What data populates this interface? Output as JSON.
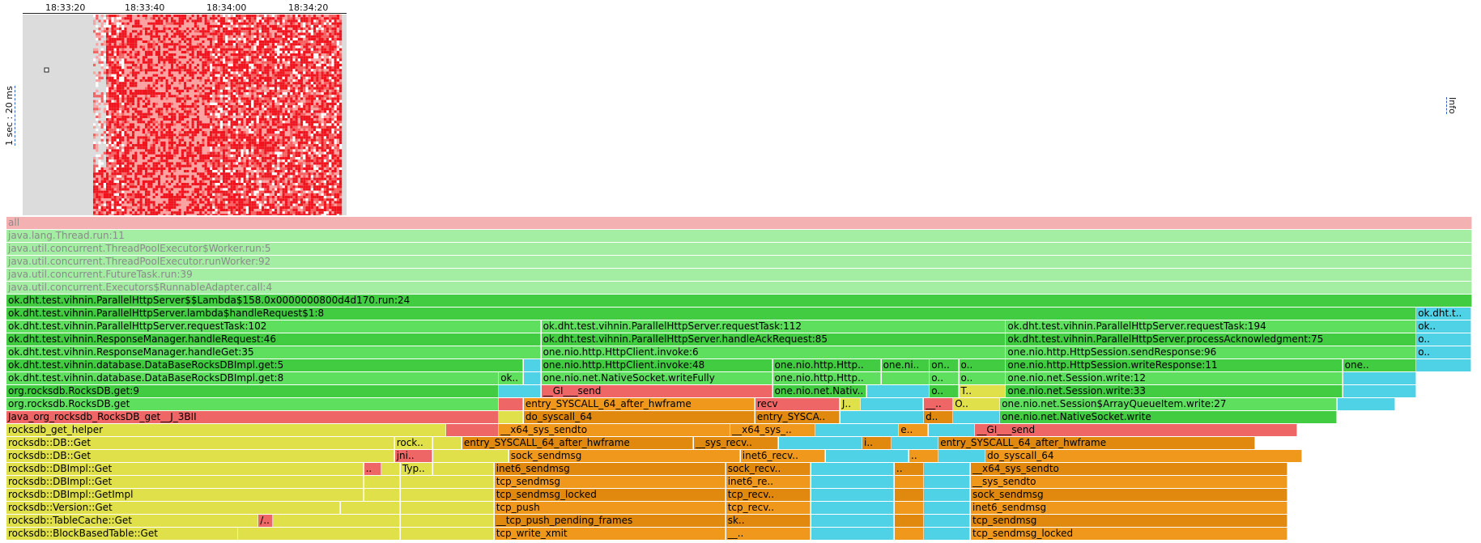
{
  "time_axis": {
    "ticks": [
      "18:33:20",
      "18:33:40",
      "18:34:00",
      "18:34:20"
    ]
  },
  "scale_label": "1 sec : 20 ms",
  "info_label": "Info",
  "colors": {
    "heatmap_empty": "#dcdcdc",
    "heatmap_hot": "#f0141e",
    "heatmap_mid": "#f76060",
    "heatmap_cool": "#fca0a0",
    "root": "#f4b1b1",
    "java_dim": "#a4eea4",
    "java": "#5ee05e",
    "java_dark": "#42cc42",
    "native": "#ee6666",
    "cpp": "#e0e04a",
    "kernel": "#f0981b",
    "kernel_dark": "#e0890e",
    "cyan": "#4fd2e6"
  },
  "flame": {
    "rows": [
      [
        {
          "label": "all",
          "w": 100,
          "c": "root",
          "dim": true
        }
      ],
      [
        {
          "label": "java.lang.Thread.run:11",
          "w": 100,
          "c": "java_dim",
          "dim": true
        }
      ],
      [
        {
          "label": "java.util.concurrent.ThreadPoolExecutor$Worker.run:5",
          "w": 100,
          "c": "java_dim",
          "dim": true
        }
      ],
      [
        {
          "label": "java.util.concurrent.ThreadPoolExecutor.runWorker:92",
          "w": 100,
          "c": "java_dim",
          "dim": true
        }
      ],
      [
        {
          "label": "java.util.concurrent.FutureTask.run:39",
          "w": 100,
          "c": "java_dim",
          "dim": true
        }
      ],
      [
        {
          "label": "java.util.concurrent.Executors$RunnableAdapter.call:4",
          "w": 100,
          "c": "java_dim",
          "dim": true
        }
      ],
      [
        {
          "label": "ok.dht.test.vihnin.ParallelHttpServer$$Lambda$158.0x0000000800d4d170.run:24",
          "w": 100,
          "c": "java_dark"
        }
      ],
      [
        {
          "label": "ok.dht.test.vihnin.ParallelHttpServer.lambda$handleRequest$1:8",
          "w": 96.2,
          "c": "java_dark"
        },
        {
          "label": "ok.dht.t..",
          "w": 3.8,
          "c": "cyan"
        }
      ],
      [
        {
          "label": "ok.dht.test.vihnin.ParallelHttpServer.requestTask:102",
          "w": 36.5,
          "c": "java"
        },
        {
          "label": "ok.dht.test.vihnin.ParallelHttpServer.requestTask:112",
          "w": 31.7,
          "c": "java"
        },
        {
          "label": "ok.dht.test.vihnin.ParallelHttpServer.requestTask:194",
          "w": 28,
          "c": "java"
        },
        {
          "label": "ok..",
          "w": 3.8,
          "c": "cyan"
        }
      ],
      [
        {
          "label": "ok.dht.test.vihnin.ResponseManager.handleRequest:46",
          "w": 36.5,
          "c": "java_dark"
        },
        {
          "label": "ok.dht.test.vihnin.ParallelHttpServer.handleAckRequest:85",
          "w": 31.7,
          "c": "java_dark"
        },
        {
          "label": "ok.dht.test.vihnin.ParallelHttpServer.processAcknowledgment:75",
          "w": 28,
          "c": "java_dark"
        },
        {
          "label": "o..",
          "w": 3.8,
          "c": "cyan"
        }
      ],
      [
        {
          "label": "ok.dht.test.vihnin.ResponseManager.handleGet:35",
          "w": 36.5,
          "c": "java"
        },
        {
          "label": "one.nio.http.HttpClient.invoke:6",
          "w": 31.7,
          "c": "java"
        },
        {
          "label": "one.nio.http.HttpSession.sendResponse:96",
          "w": 28,
          "c": "java"
        },
        {
          "label": "o..",
          "w": 3.8,
          "c": "cyan"
        }
      ],
      [
        {
          "label": "ok.dht.test.vihnin.database.DataBaseRocksDBImpl.get:5",
          "w": 35.3,
          "c": "java_dark"
        },
        {
          "label": "",
          "w": 1.2,
          "c": "cyan"
        },
        {
          "label": "one.nio.http.HttpClient.invoke:48",
          "w": 15.8,
          "c": "java_dark"
        },
        {
          "label": "one.nio.http.Http..",
          "w": 7.4,
          "c": "java_dark"
        },
        {
          "label": "one.ni..",
          "w": 3.3,
          "c": "java_dark"
        },
        {
          "label": "on..",
          "w": 2,
          "c": "java_dark"
        },
        {
          "label": "o..",
          "w": 3.2,
          "c": "java_dark"
        },
        {
          "label": "one.nio.http.HttpSession.writeResponse:11",
          "w": 23,
          "c": "java_dark"
        },
        {
          "label": "one..",
          "w": 5,
          "c": "java_dark"
        },
        {
          "label": "",
          "w": 3.8,
          "c": "cyan"
        }
      ],
      [
        {
          "label": "ok.dht.test.vihnin.database.DataBaseRocksDBImpl.get:8",
          "w": 33.6,
          "c": "java"
        },
        {
          "label": "ok..",
          "w": 1.7,
          "c": "java"
        },
        {
          "label": "",
          "w": 1.2,
          "c": "cyan"
        },
        {
          "label": "one.nio.net.NativeSocket.writeFully",
          "w": 15.8,
          "c": "java"
        },
        {
          "label": "one.nio.http.Http..",
          "w": 7.4,
          "c": "java"
        },
        {
          "label": "",
          "w": 3.3,
          "c": "java"
        },
        {
          "label": "o..",
          "w": 2,
          "c": "java"
        },
        {
          "label": "o..",
          "w": 3.2,
          "c": "java"
        },
        {
          "label": "one.nio.net.Session.write:12",
          "w": 23,
          "c": "java"
        },
        {
          "label": "",
          "w": 5,
          "c": "cyan"
        }
      ],
      [
        {
          "label": "org.rocksdb.RocksDB.get:9",
          "w": 33.6,
          "c": "java_dark"
        },
        {
          "label": "",
          "w": 2.9,
          "c": "cyan"
        },
        {
          "label": "__GI___send",
          "w": 15.8,
          "c": "native"
        },
        {
          "label": "one.nio.net.Nativ..",
          "w": 6.4,
          "c": "java_dark"
        },
        {
          "label": "",
          "w": 4.3,
          "c": "cyan"
        },
        {
          "label": "o..",
          "w": 2,
          "c": "java_dark"
        },
        {
          "label": "T..",
          "w": 3.2,
          "c": "cpp"
        },
        {
          "label": "one.nio.net.Session.write:33",
          "w": 23,
          "c": "java_dark"
        },
        {
          "label": "",
          "w": 5,
          "c": "cyan"
        }
      ],
      [
        {
          "label": "org.rocksdb.RocksDB.get",
          "w": 33.6,
          "c": "java"
        },
        {
          "label": "",
          "w": 1.7,
          "c": "native"
        },
        {
          "label": "entry_SYSCALL_64_after_hwframe",
          "w": 15.8,
          "c": "kernel"
        },
        {
          "label": "recv",
          "w": 5.8,
          "c": "native"
        },
        {
          "label": "J..",
          "w": 1.4,
          "c": "cpp"
        },
        {
          "label": "",
          "w": 4.3,
          "c": "cyan"
        },
        {
          "label": "__..",
          "w": 2,
          "c": "native"
        },
        {
          "label": "O..",
          "w": 3.2,
          "c": "cpp"
        },
        {
          "label": "one.nio.net.Session$ArrayQueueItem.write:27",
          "w": 23,
          "c": "java"
        },
        {
          "label": "",
          "w": 4,
          "c": "cyan"
        }
      ],
      [
        {
          "label": "Java_org_rocksdb_RocksDB_get__J_3BII",
          "w": 33.6,
          "c": "native"
        },
        {
          "label": "",
          "w": 1.7,
          "c": "cpp"
        },
        {
          "label": "do_syscall_64",
          "w": 15.8,
          "c": "kernel_dark"
        },
        {
          "label": "entry_SYSCA..",
          "w": 5.8,
          "c": "kernel_dark"
        },
        {
          "label": "",
          "w": 5.7,
          "c": "cyan"
        },
        {
          "label": "d..",
          "w": 2,
          "c": "kernel_dark"
        },
        {
          "label": "",
          "w": 3.2,
          "c": "cyan"
        },
        {
          "label": "one.nio.net.NativeSocket.write",
          "w": 23,
          "c": "java_dark"
        }
      ],
      [
        {
          "label": "rocksdb_get_helper",
          "w": 30,
          "c": "cpp"
        },
        {
          "label": "",
          "w": 3.6,
          "c": "native"
        },
        {
          "label": "__x64_sys_sendto",
          "w": 15.8,
          "c": "kernel"
        },
        {
          "label": "__x64_sys_..",
          "w": 5.8,
          "c": "kernel"
        },
        {
          "label": "",
          "w": 5.7,
          "c": "cyan"
        },
        {
          "label": "e..",
          "w": 2,
          "c": "kernel"
        },
        {
          "label": "",
          "w": 3.2,
          "c": "cyan"
        },
        {
          "label": "__GI___send",
          "w": 22,
          "c": "native"
        }
      ],
      [
        {
          "label": "rocksdb::DB::Get",
          "w": 26.5,
          "c": "cpp"
        },
        {
          "label": "rock..",
          "w": 2.6,
          "c": "cpp"
        },
        {
          "label": "",
          "w": 2,
          "c": "cpp"
        },
        {
          "label": "entry_SYSCALL_64_after_hwframe",
          "w": 15.8,
          "c": "kernel_dark"
        },
        {
          "label": "__sys_recv..",
          "w": 5.8,
          "c": "kernel_dark"
        },
        {
          "label": "",
          "w": 5.7,
          "c": "cyan"
        },
        {
          "label": "i..",
          "w": 2,
          "c": "kernel_dark"
        },
        {
          "label": "",
          "w": 3.2,
          "c": "cyan"
        },
        {
          "label": "entry_SYSCALL_64_after_hwframe",
          "w": 21.6,
          "c": "kernel_dark"
        }
      ],
      [
        {
          "label": "rocksdb::DB::Get",
          "w": 26.5,
          "c": "cpp"
        },
        {
          "label": "jni..",
          "w": 2.6,
          "c": "native"
        },
        {
          "label": "",
          "w": 5.2,
          "c": "cpp"
        },
        {
          "label": "sock_sendmsg",
          "w": 15.8,
          "c": "kernel"
        },
        {
          "label": "inet6_recv..",
          "w": 5.8,
          "c": "kernel"
        },
        {
          "label": "",
          "w": 5.7,
          "c": "cyan"
        },
        {
          "label": "..",
          "w": 2,
          "c": "kernel"
        },
        {
          "label": "",
          "w": 3.2,
          "c": "cyan"
        },
        {
          "label": "do_syscall_64",
          "w": 21.6,
          "c": "kernel"
        }
      ],
      [
        {
          "label": "rocksdb::DBImpl::Get",
          "w": 24.4,
          "c": "cpp"
        },
        {
          "label": "..",
          "w": 1.2,
          "c": "native"
        },
        {
          "label": "",
          "w": 1.3,
          "c": "cpp"
        },
        {
          "label": "Typ..",
          "w": 2.2,
          "c": "cpp"
        },
        {
          "label": "",
          "w": 4.2,
          "c": "cpp"
        },
        {
          "label": "inet6_sendmsg",
          "w": 15.8,
          "c": "kernel_dark"
        },
        {
          "label": "sock_recv..",
          "w": 5.8,
          "c": "kernel_dark"
        },
        {
          "label": "",
          "w": 5.7,
          "c": "cyan"
        },
        {
          "label": "..",
          "w": 2,
          "c": "kernel_dark"
        },
        {
          "label": "",
          "w": 3.2,
          "c": "cyan"
        },
        {
          "label": "__x64_sys_sendto",
          "w": 21.6,
          "c": "kernel_dark"
        }
      ],
      [
        {
          "label": "rocksdb::DBImpl::Get",
          "w": 24.4,
          "c": "cpp"
        },
        {
          "label": "",
          "w": 2.5,
          "c": "cpp"
        },
        {
          "label": "",
          "w": 6.4,
          "c": "cpp"
        },
        {
          "label": "tcp_sendmsg",
          "w": 15.8,
          "c": "kernel"
        },
        {
          "label": "inet6_re..",
          "w": 5.8,
          "c": "kernel"
        },
        {
          "label": "",
          "w": 5.7,
          "c": "cyan"
        },
        {
          "label": "",
          "w": 2,
          "c": "kernel"
        },
        {
          "label": "",
          "w": 3.2,
          "c": "cyan"
        },
        {
          "label": "__sys_sendto",
          "w": 21.6,
          "c": "kernel"
        }
      ],
      [
        {
          "label": "rocksdb::DBImpl::GetImpl",
          "w": 24.4,
          "c": "cpp"
        },
        {
          "label": "",
          "w": 2.5,
          "c": "cpp"
        },
        {
          "label": "",
          "w": 6.4,
          "c": "cpp"
        },
        {
          "label": "tcp_sendmsg_locked",
          "w": 15.8,
          "c": "kernel_dark"
        },
        {
          "label": "tcp_recv..",
          "w": 5.8,
          "c": "kernel_dark"
        },
        {
          "label": "",
          "w": 5.7,
          "c": "cyan"
        },
        {
          "label": "",
          "w": 2,
          "c": "kernel_dark"
        },
        {
          "label": "",
          "w": 3.2,
          "c": "cyan"
        },
        {
          "label": "sock_sendmsg",
          "w": 21.6,
          "c": "kernel_dark"
        }
      ],
      [
        {
          "label": "rocksdb::Version::Get",
          "w": 22.8,
          "c": "cpp"
        },
        {
          "label": "",
          "w": 4.1,
          "c": "cpp"
        },
        {
          "label": "",
          "w": 6.4,
          "c": "cpp"
        },
        {
          "label": "tcp_push",
          "w": 15.8,
          "c": "kernel"
        },
        {
          "label": "tcp_recv..",
          "w": 5.8,
          "c": "kernel"
        },
        {
          "label": "",
          "w": 5.7,
          "c": "cyan"
        },
        {
          "label": "",
          "w": 2,
          "c": "kernel"
        },
        {
          "label": "",
          "w": 3.2,
          "c": "cyan"
        },
        {
          "label": "inet6_sendmsg",
          "w": 21.6,
          "c": "kernel"
        }
      ],
      [
        {
          "label": "rocksdb::TableCache::Get",
          "w": 17.2,
          "c": "cpp"
        },
        {
          "label": "/..",
          "w": 1,
          "c": "native"
        },
        {
          "label": "",
          "w": 8.7,
          "c": "cpp"
        },
        {
          "label": "",
          "w": 6.4,
          "c": "cpp"
        },
        {
          "label": "__tcp_push_pending_frames",
          "w": 15.8,
          "c": "kernel_dark"
        },
        {
          "label": "sk..",
          "w": 5.8,
          "c": "kernel_dark"
        },
        {
          "label": "",
          "w": 5.7,
          "c": "cyan"
        },
        {
          "label": "",
          "w": 2,
          "c": "kernel_dark"
        },
        {
          "label": "",
          "w": 3.2,
          "c": "cyan"
        },
        {
          "label": "tcp_sendmsg",
          "w": 21.6,
          "c": "kernel_dark"
        }
      ],
      [
        {
          "label": "rocksdb::BlockBasedTable::Get",
          "w": 15.8,
          "c": "cpp"
        },
        {
          "label": "",
          "w": 11.1,
          "c": "cpp"
        },
        {
          "label": "",
          "w": 6.4,
          "c": "cpp"
        },
        {
          "label": "tcp_write_xmit",
          "w": 15.8,
          "c": "kernel"
        },
        {
          "label": "__..",
          "w": 5.8,
          "c": "kernel"
        },
        {
          "label": "",
          "w": 5.7,
          "c": "cyan"
        },
        {
          "label": "",
          "w": 2,
          "c": "kernel"
        },
        {
          "label": "",
          "w": 3.2,
          "c": "cyan"
        },
        {
          "label": "tcp_sendmsg_locked",
          "w": 21.6,
          "c": "kernel"
        }
      ]
    ]
  }
}
